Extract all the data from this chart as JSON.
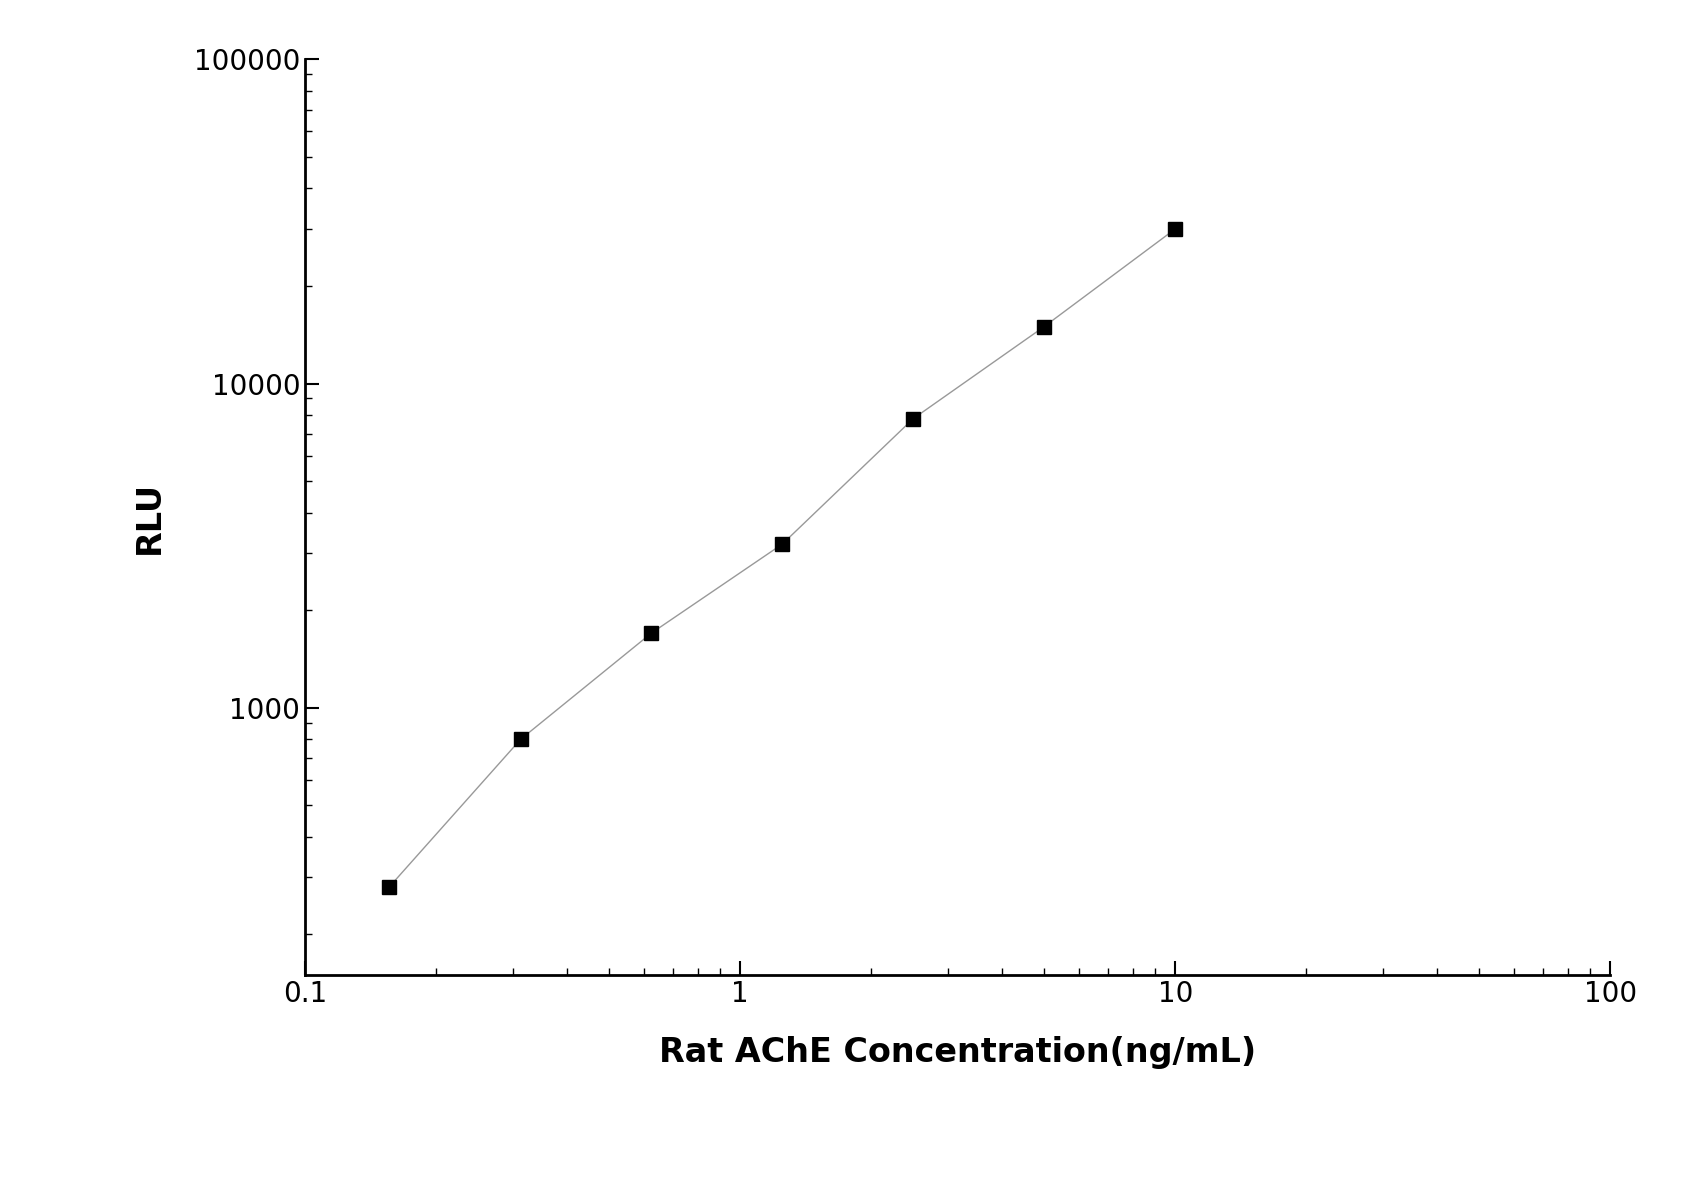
{
  "x_values": [
    0.156,
    0.313,
    0.625,
    1.25,
    2.5,
    5.0,
    10.0
  ],
  "y_values": [
    280,
    800,
    1700,
    3200,
    7800,
    15000,
    30000
  ],
  "xlabel": "Rat AChE Concentration(ng/mL)",
  "ylabel": "RLU",
  "xlim": [
    0.1,
    100
  ],
  "ylim": [
    150,
    100000
  ],
  "line_color": "#999999",
  "marker_color": "#000000",
  "marker_style": "s",
  "marker_size": 10,
  "line_width": 1.0,
  "background_color": "#ffffff",
  "xlabel_fontsize": 24,
  "ylabel_fontsize": 24,
  "tick_fontsize": 20,
  "xlabel_fontweight": "bold",
  "ylabel_fontweight": "bold"
}
